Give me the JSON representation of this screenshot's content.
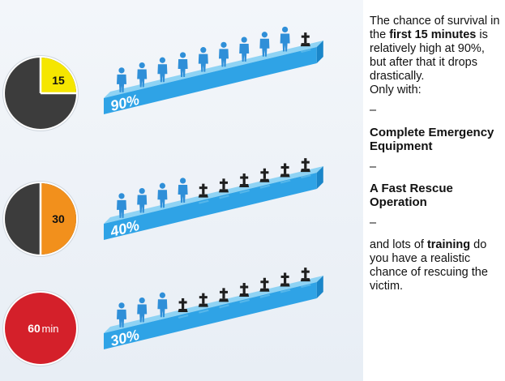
{
  "rows": [
    {
      "clock_label": "15",
      "clock_color": "#f5e600",
      "clock_fraction": 0.25,
      "percent_label": "90%",
      "survivors": 9,
      "total": 10
    },
    {
      "clock_label": "30",
      "clock_color": "#f2901c",
      "clock_fraction": 0.5,
      "percent_label": "40%",
      "survivors": 4,
      "total": 10
    },
    {
      "clock_label": "60",
      "clock_unit": "min",
      "clock_color": "#d4202a",
      "clock_fraction": 1.0,
      "percent_label": "30%",
      "survivors": 3,
      "total": 10
    }
  ],
  "colors": {
    "person_alive": "#2f8fd8",
    "person_dead": "#1f1f1f",
    "platform_top": "#8fd3f4",
    "platform_front": "#2fa3e6",
    "clock_face": "#3c3c3c"
  },
  "icons": [
    "person-icon",
    "grave-cross-icon",
    "clock-icon"
  ],
  "text": {
    "intro_prefix": "The chance of survival in the ",
    "intro_bold": "first 15 minutes",
    "intro_suffix": " is relatively high at 90%, but after that it drops drastically.",
    "only_with": "Only with:",
    "dash1": "–",
    "heading1": "Complete Emergency Equipment",
    "dash2": "–",
    "heading2": "A Fast Rescue Operation",
    "dash3": "–",
    "outro_prefix": "and lots of ",
    "outro_bold": "training",
    "outro_suffix": " do you have a realistic chance of rescuing the victim."
  }
}
